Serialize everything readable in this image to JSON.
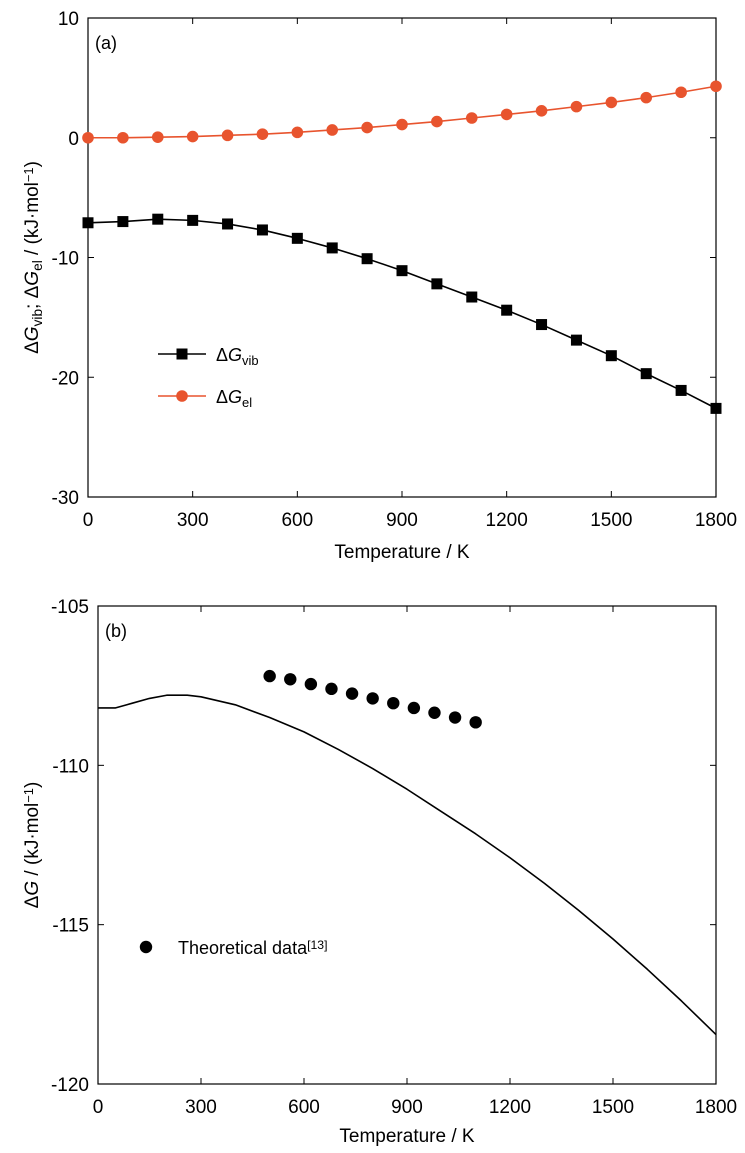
{
  "chart_data": [
    {
      "type": "line",
      "panel_label": "(a)",
      "xlabel": "Temperature / K",
      "ylabel_parts": [
        {
          "t": "Δ",
          "s": "n"
        },
        {
          "t": "G",
          "s": "i"
        },
        {
          "t": "vib",
          "s": "sub"
        },
        {
          "t": "; Δ",
          "s": "n"
        },
        {
          "t": "G",
          "s": "i"
        },
        {
          "t": "el",
          "s": "sub"
        },
        {
          "t": " / (kJ·mol",
          "s": "n"
        },
        {
          "t": "−1",
          "s": "sup"
        },
        {
          "t": ")",
          "s": "n"
        }
      ],
      "xlim": [
        0,
        1800
      ],
      "ylim": [
        -30,
        10
      ],
      "xticks": [
        "0",
        "300",
        "600",
        "900",
        "1200",
        "1500",
        "1800"
      ],
      "xtick_values": [
        0,
        300,
        600,
        900,
        1200,
        1500,
        1800
      ],
      "yticks": [
        "10",
        "0",
        "-10",
        "-20",
        "-30"
      ],
      "ytick_values": [
        10,
        0,
        -10,
        -20,
        -30
      ],
      "legend_position": "lower-left",
      "series": [
        {
          "name_parts": [
            {
              "t": "Δ",
              "s": "n"
            },
            {
              "t": "G",
              "s": "i"
            },
            {
              "t": "vib",
              "s": "sub"
            }
          ],
          "marker": "square",
          "color": "#000000",
          "x": [
            0,
            100,
            200,
            300,
            400,
            500,
            600,
            700,
            800,
            900,
            1000,
            1100,
            1200,
            1300,
            1400,
            1500,
            1600,
            1700,
            1800
          ],
          "y": [
            -7.1,
            -7.0,
            -6.8,
            -6.9,
            -7.2,
            -7.7,
            -8.4,
            -9.2,
            -10.1,
            -11.1,
            -12.2,
            -13.3,
            -14.4,
            -15.6,
            -16.9,
            -18.2,
            -19.7,
            -21.1,
            -22.6
          ]
        },
        {
          "name_parts": [
            {
              "t": "Δ",
              "s": "n"
            },
            {
              "t": "G",
              "s": "i"
            },
            {
              "t": "el",
              "s": "sub"
            }
          ],
          "marker": "circle",
          "color": "#E8542E",
          "x": [
            0,
            100,
            200,
            300,
            400,
            500,
            600,
            700,
            800,
            900,
            1000,
            1100,
            1200,
            1300,
            1400,
            1500,
            1600,
            1700,
            1800
          ],
          "y": [
            0.0,
            0.0,
            0.05,
            0.1,
            0.2,
            0.3,
            0.45,
            0.65,
            0.85,
            1.1,
            1.35,
            1.65,
            1.95,
            2.25,
            2.6,
            2.95,
            3.35,
            3.8,
            4.3
          ]
        }
      ]
    },
    {
      "type": "line",
      "panel_label": "(b)",
      "xlabel": "Temperature / K",
      "ylabel_parts": [
        {
          "t": "Δ",
          "s": "n"
        },
        {
          "t": "G",
          "s": "i"
        },
        {
          "t": " / (kJ·mol",
          "s": "n"
        },
        {
          "t": "−1",
          "s": "sup"
        },
        {
          "t": ")",
          "s": "n"
        }
      ],
      "xlim": [
        0,
        1800
      ],
      "ylim": [
        -120,
        -105
      ],
      "xticks": [
        "0",
        "300",
        "600",
        "900",
        "1200",
        "1500",
        "1800"
      ],
      "xtick_values": [
        0,
        300,
        600,
        900,
        1200,
        1500,
        1800
      ],
      "yticks": [
        "-105",
        "-110",
        "-115",
        "-120"
      ],
      "ytick_values": [
        -105,
        -110,
        -115,
        -120
      ],
      "legend_position": "lower-left",
      "line": {
        "color": "#000000",
        "x": [
          0,
          50,
          100,
          150,
          200,
          260,
          300,
          400,
          500,
          600,
          700,
          800,
          900,
          1000,
          1100,
          1200,
          1300,
          1400,
          1500,
          1600,
          1700,
          1800
        ],
        "y": [
          -108.2,
          -108.2,
          -108.05,
          -107.9,
          -107.8,
          -107.8,
          -107.85,
          -108.1,
          -108.5,
          -108.95,
          -109.5,
          -110.1,
          -110.75,
          -111.45,
          -112.15,
          -112.9,
          -113.7,
          -114.55,
          -115.45,
          -116.4,
          -117.4,
          -118.45
        ]
      },
      "series": [
        {
          "name_parts": [
            {
              "t": "Theoretical data",
              "s": "n"
            },
            {
              "t": "[13]",
              "s": "sup"
            }
          ],
          "marker": "circle",
          "color": "#000000",
          "x": [
            500,
            560,
            620,
            680,
            740,
            800,
            860,
            920,
            980,
            1040,
            1100
          ],
          "y": [
            -107.2,
            -107.3,
            -107.45,
            -107.6,
            -107.75,
            -107.9,
            -108.05,
            -108.2,
            -108.35,
            -108.5,
            -108.65
          ]
        }
      ]
    }
  ]
}
